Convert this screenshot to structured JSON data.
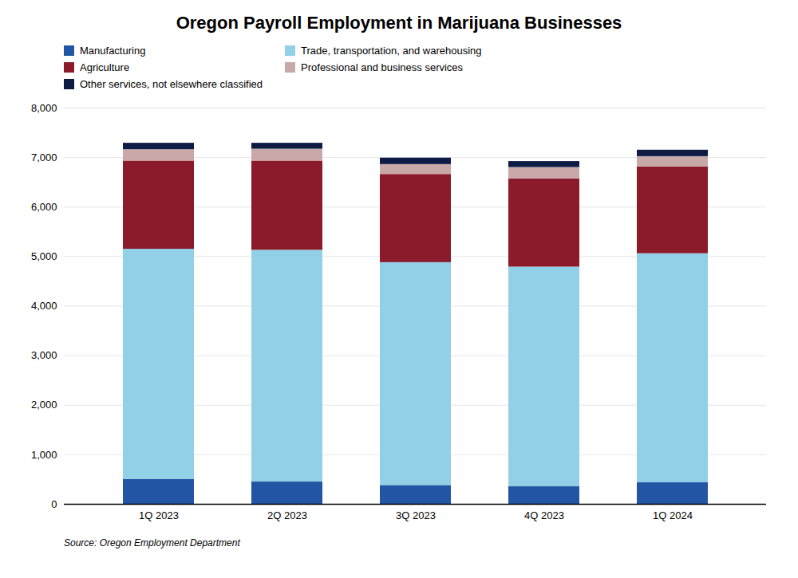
{
  "chart_data": {
    "type": "bar",
    "stacked": true,
    "title": "Oregon Payroll Employment in Marijuana Businesses",
    "categories": [
      "1Q 2023",
      "2Q 2023",
      "3Q 2023",
      "4Q 2023",
      "1Q 2024"
    ],
    "series": [
      {
        "name": "Manufacturing",
        "color": "#2255a4",
        "values": [
          500,
          450,
          380,
          360,
          440
        ]
      },
      {
        "name": "Trade, transportation, and warehousing",
        "color": "#92d0e8",
        "values": [
          4650,
          4680,
          4500,
          4430,
          4620
        ]
      },
      {
        "name": "Agriculture",
        "color": "#8b1a2b",
        "values": [
          1780,
          1800,
          1780,
          1780,
          1750
        ]
      },
      {
        "name": "Professional and business services",
        "color": "#c8a8a8",
        "values": [
          230,
          240,
          200,
          230,
          210
        ]
      },
      {
        "name": "Other services, not elsewhere classified",
        "color": "#0d1b45",
        "values": [
          130,
          120,
          130,
          120,
          130
        ]
      }
    ],
    "ylim": [
      0,
      8000
    ],
    "yticks": [
      0,
      {
        "value": 1000,
        "label": "1,000"
      },
      {
        "value": 2000,
        "label": "2,000"
      },
      {
        "value": 3000,
        "label": "3,000"
      },
      {
        "value": 4000,
        "label": "4,000"
      },
      {
        "value": 5000,
        "label": "5,000"
      },
      {
        "value": 6000,
        "label": "6,000"
      },
      {
        "value": 7000,
        "label": "7,000"
      },
      {
        "value": 8000,
        "label": "8,000"
      }
    ],
    "grid": true,
    "legend": "upper left",
    "source": "Source: Oregon Employment Department"
  }
}
